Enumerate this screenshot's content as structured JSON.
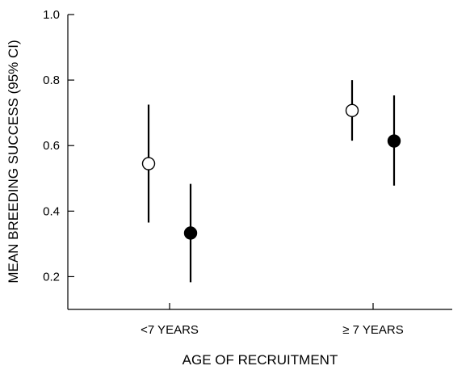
{
  "chart_data": {
    "type": "scatter",
    "xlabel": "AGE OF RECRUITMENT",
    "ylabel": "MEAN BREEDING SUCCESS (95% CI)",
    "categories": [
      "<7 YEARS",
      "≥ 7 YEARS"
    ],
    "ylim": [
      0.1,
      1.0
    ],
    "yticks": [
      "0.2",
      "0.4",
      "0.6",
      "0.8",
      "1.0"
    ],
    "grid": false,
    "legend": "none",
    "series": [
      {
        "marker": "open-circle",
        "color": "#ffffff",
        "values": [
          0.545,
          0.707
        ],
        "ci_lower": [
          0.365,
          0.615
        ],
        "ci_upper": [
          0.725,
          0.8
        ]
      },
      {
        "marker": "filled-circle",
        "color": "#000000",
        "values": [
          0.333,
          0.614
        ],
        "ci_lower": [
          0.183,
          0.478
        ],
        "ci_upper": [
          0.483,
          0.753
        ]
      }
    ]
  }
}
